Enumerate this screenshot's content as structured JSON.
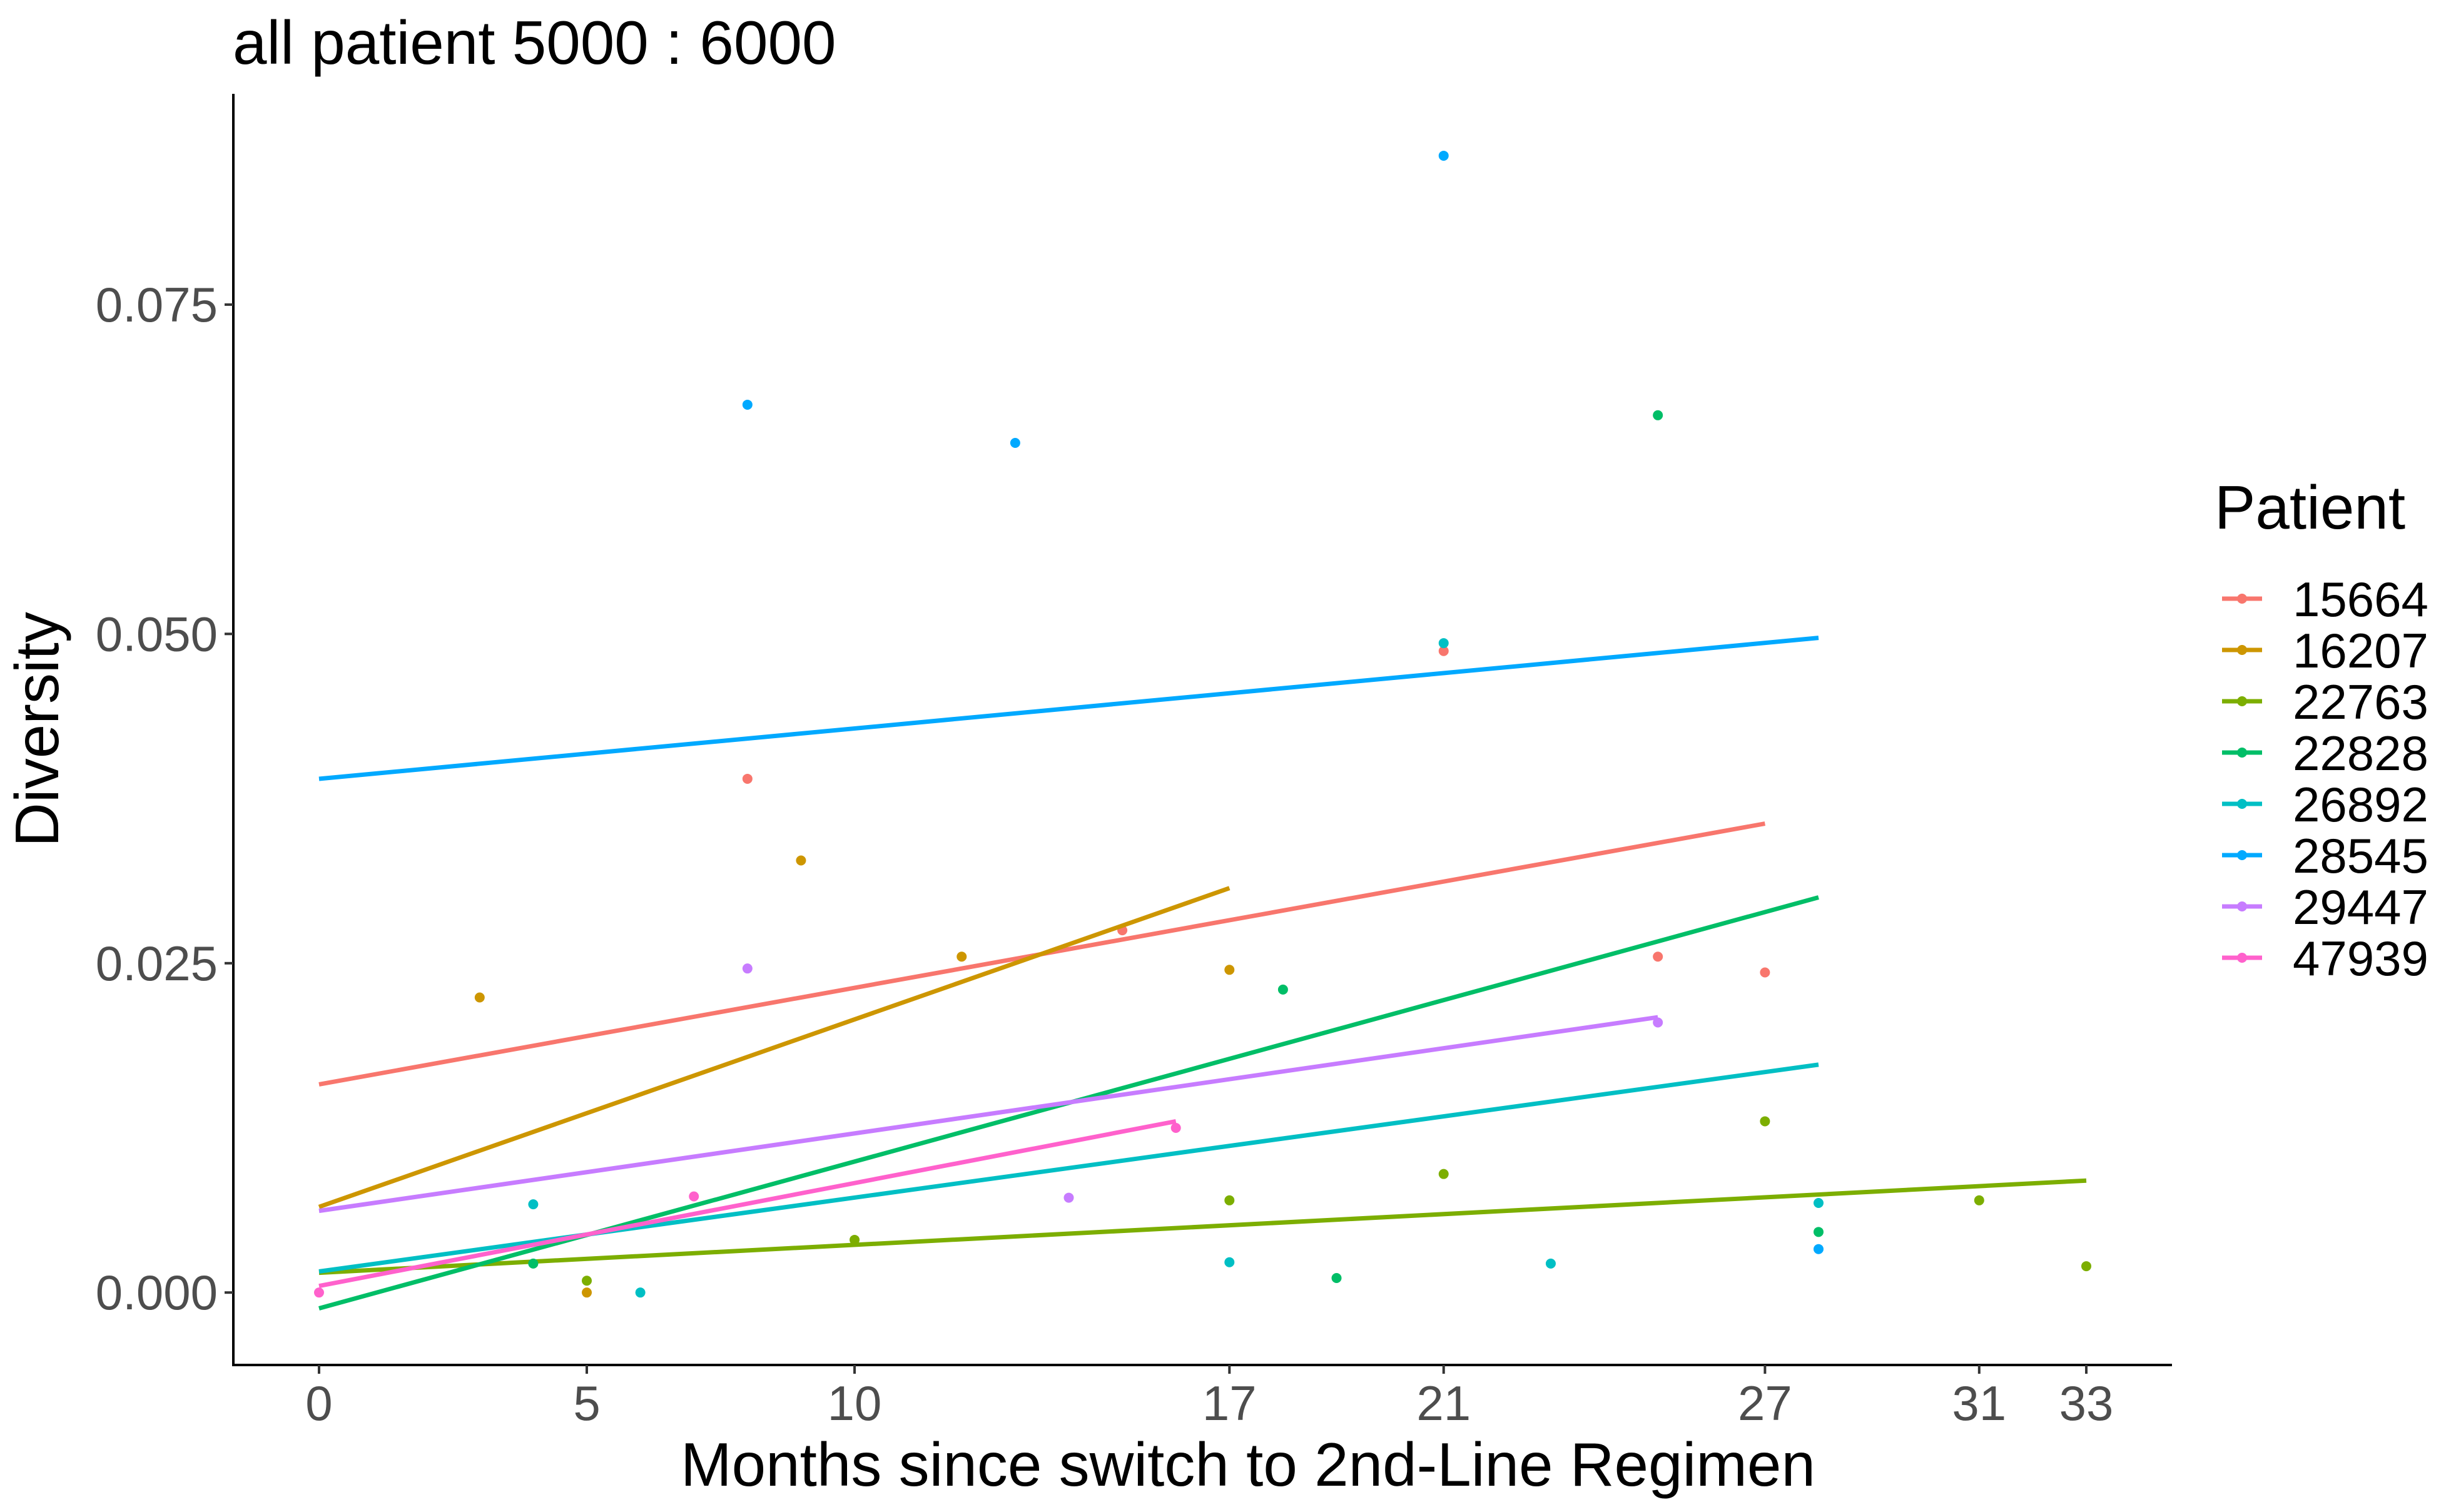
{
  "chart_data": {
    "type": "scatter",
    "title": "all patient 5000 : 6000",
    "xlabel": "Months since switch to 2nd-Line Regimen",
    "ylabel": "Diversity",
    "xlim": [
      -1.6,
      34.6
    ],
    "ylim": [
      -0.0055,
      0.091
    ],
    "x_ticks": [
      0,
      5,
      10,
      17,
      21,
      27,
      31,
      33
    ],
    "y_ticks": [
      0.0,
      0.025,
      0.05,
      0.075
    ],
    "y_tick_labels": [
      "0.000",
      "0.025",
      "0.050",
      "0.075"
    ],
    "legend": {
      "title": "Patient",
      "position": "right"
    },
    "series": [
      {
        "name": "15664",
        "color": "#F8766D",
        "points": [
          [
            8,
            0.039
          ],
          [
            15,
            0.0275
          ],
          [
            21,
            0.0487
          ],
          [
            25,
            0.0255
          ],
          [
            27,
            0.0243
          ]
        ],
        "trend": [
          [
            0,
            0.0158
          ],
          [
            27,
            0.0356
          ]
        ]
      },
      {
        "name": "16207",
        "color": "#CD9600",
        "points": [
          [
            3,
            0.0224
          ],
          [
            5,
            0.0
          ],
          [
            9,
            0.0328
          ],
          [
            12,
            0.0255
          ],
          [
            17,
            0.0245
          ]
        ],
        "trend": [
          [
            0,
            0.0065
          ],
          [
            17,
            0.0307
          ]
        ]
      },
      {
        "name": "22763",
        "color": "#7CAE00",
        "points": [
          [
            5,
            0.0009
          ],
          [
            10,
            0.004
          ],
          [
            17,
            0.007
          ],
          [
            21,
            0.009
          ],
          [
            27,
            0.013
          ],
          [
            31,
            0.007
          ],
          [
            33,
            0.002
          ]
        ],
        "trend": [
          [
            0,
            0.0015
          ],
          [
            33,
            0.0085
          ]
        ]
      },
      {
        "name": "22828",
        "color": "#00BE67",
        "points": [
          [
            4,
            0.0022
          ],
          [
            18,
            0.023
          ],
          [
            19,
            0.0011
          ],
          [
            25,
            0.0666
          ],
          [
            28,
            0.0046
          ]
        ],
        "trend": [
          [
            0,
            -0.0012
          ],
          [
            28,
            0.03
          ]
        ]
      },
      {
        "name": "26892",
        "color": "#00BFC4",
        "points": [
          [
            4,
            0.0067
          ],
          [
            6,
            0.0
          ],
          [
            17,
            0.0023
          ],
          [
            21,
            0.0493
          ],
          [
            23,
            0.0022
          ],
          [
            28,
            0.0068
          ]
        ],
        "trend": [
          [
            0,
            0.0016
          ],
          [
            28,
            0.0173
          ]
        ]
      },
      {
        "name": "28545",
        "color": "#00A9FF",
        "points": [
          [
            8,
            0.0674
          ],
          [
            13,
            0.0645
          ],
          [
            21,
            0.0863
          ],
          [
            28,
            0.0033
          ]
        ],
        "trend": [
          [
            0,
            0.039
          ],
          [
            28,
            0.0497
          ]
        ]
      },
      {
        "name": "29447",
        "color": "#C77CFF",
        "points": [
          [
            8,
            0.0246
          ],
          [
            14,
            0.0072
          ],
          [
            25,
            0.0205
          ]
        ],
        "trend": [
          [
            0,
            0.0062
          ],
          [
            25,
            0.0209
          ]
        ]
      },
      {
        "name": "47939",
        "color": "#FF61CC",
        "points": [
          [
            0,
            0.0
          ],
          [
            7,
            0.0073
          ],
          [
            16,
            0.0125
          ]
        ],
        "trend": [
          [
            0,
            0.0005
          ],
          [
            16,
            0.013
          ]
        ]
      }
    ]
  }
}
